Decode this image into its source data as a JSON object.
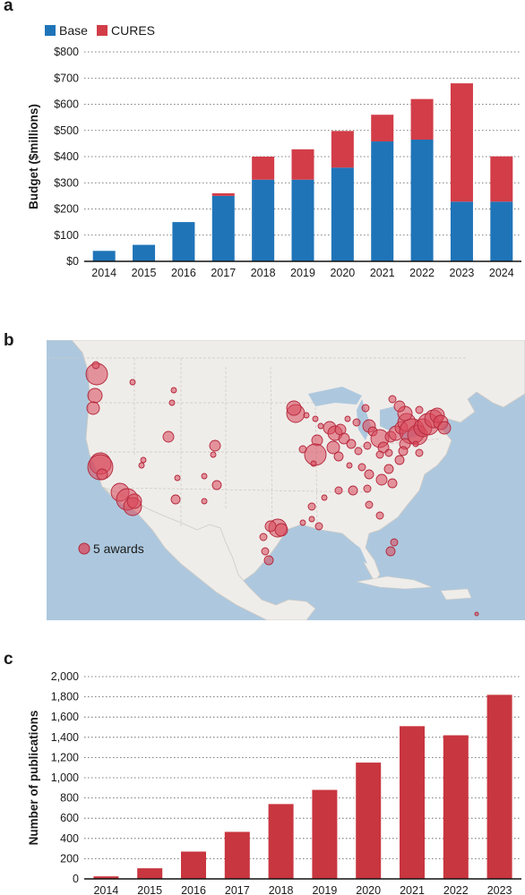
{
  "panels": {
    "a": "a",
    "b": "b",
    "c": "c"
  },
  "chart_data": [
    {
      "type": "bar",
      "stacked": true,
      "ylabel": "Budget ($millions)",
      "categories": [
        "2014",
        "2015",
        "2016",
        "2017",
        "2018",
        "2019",
        "2020",
        "2021",
        "2022",
        "2023",
        "2024"
      ],
      "series": [
        {
          "name": "Base",
          "color": "#1f74b8",
          "values": [
            40,
            63,
            150,
            250,
            312,
            312,
            358,
            458,
            465,
            228,
            228
          ]
        },
        {
          "name": "CURES",
          "color": "#d23d48",
          "values": [
            0,
            0,
            0,
            10,
            88,
            116,
            140,
            102,
            155,
            452,
            173
          ]
        }
      ],
      "ylim": [
        0,
        800
      ],
      "yticks": [
        0,
        100,
        200,
        300,
        400,
        500,
        600,
        700,
        800
      ],
      "ytick_labels": [
        "$0",
        "$100",
        "$200",
        "$300",
        "$400",
        "$500",
        "$600",
        "$700",
        "$800"
      ],
      "grid": "horizontal-dotted",
      "legend": "top-left"
    },
    {
      "type": "bar",
      "ylabel": "Number of publications",
      "categories": [
        "2014",
        "2015",
        "2016",
        "2017",
        "2018",
        "2019",
        "2020",
        "2021",
        "2022",
        "2023"
      ],
      "series": [
        {
          "name": "",
          "color": "#c8363f",
          "values": [
            25,
            105,
            270,
            465,
            740,
            880,
            1150,
            1510,
            1420,
            1820
          ]
        }
      ],
      "ylim": [
        0,
        2000
      ],
      "yticks": [
        0,
        200,
        400,
        600,
        800,
        1000,
        1200,
        1400,
        1600,
        1800,
        2000
      ],
      "ytick_labels": [
        "0",
        "200",
        "400",
        "600",
        "800",
        "1,000",
        "1,200",
        "1,400",
        "1,600",
        "1,800",
        "2,000"
      ],
      "grid": "horizontal-dotted",
      "legend": "none"
    }
  ],
  "map": {
    "legend_label": "5 awards",
    "marker_color": "#d9475a"
  }
}
